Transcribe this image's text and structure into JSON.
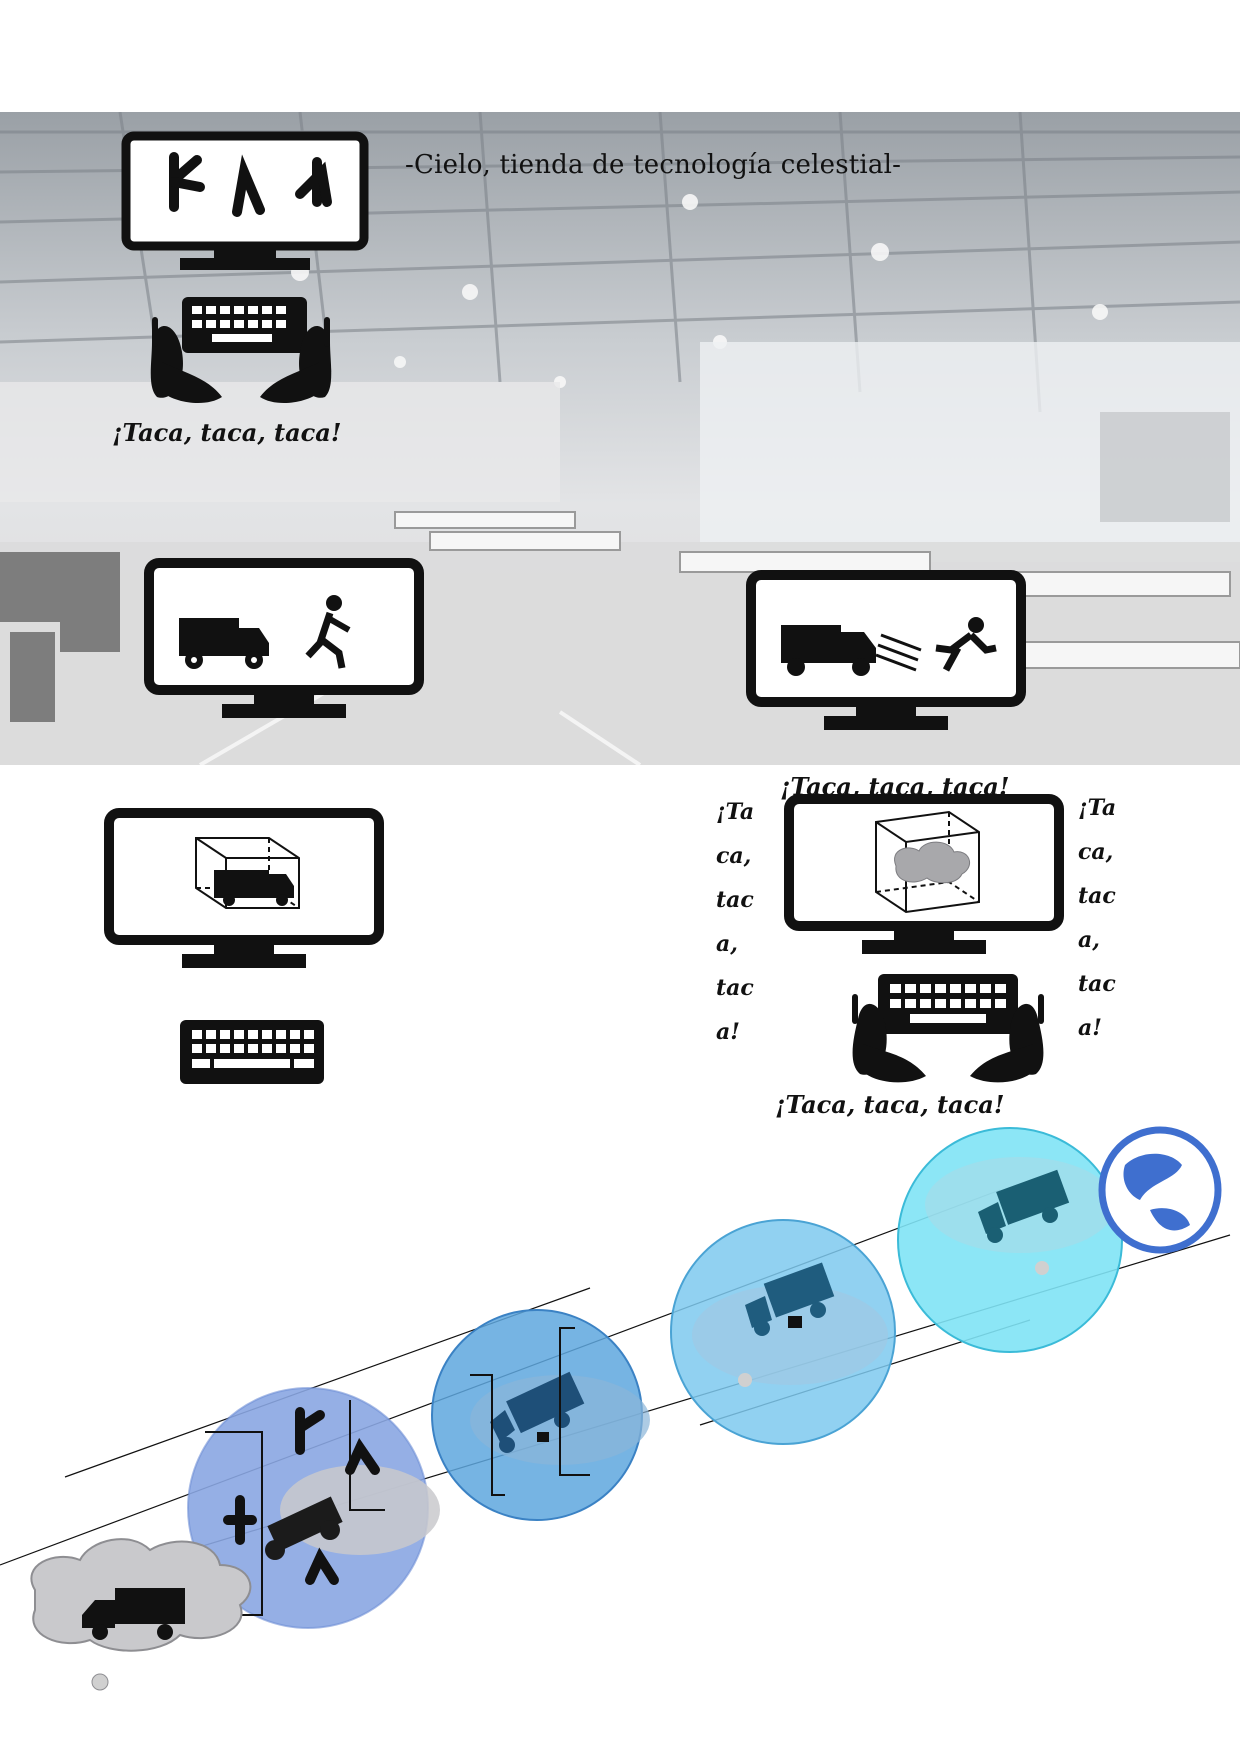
{
  "document": {
    "title": "-Cielo, tienda de tecnología celestial-"
  },
  "captions": {
    "top_left": "¡Taca, taca, taca!",
    "top_right": "¡Taca, taca, taca!",
    "bottom_right": "¡Taca, taca, taca!",
    "left_vertical": "¡Ta\nca,\ntac\na,\ntac\na!",
    "right_vertical": "¡Ta\nca,\ntac\na,\ntac\na!"
  },
  "colors": {
    "icon_black": "#111111",
    "bubble_dark": "#6f8fd6",
    "bubble_mid": "#5ea7de",
    "bubble_light": "#7ec9ee",
    "bubble_cyan": "#7fe3f5",
    "cloud_gray": "#c9c9cc",
    "globe_blue": "#3f6fcf"
  },
  "icons": [
    "monitor-with-runes-icon",
    "keyboard-with-hands-icon",
    "monitor-truck-and-runner-icon",
    "monitor-truck-chasing-runner-icon",
    "monitor-truck-in-box-icon",
    "keyboard-icon",
    "monitor-cloud-in-box-icon",
    "truck-cloud-icon",
    "globe-icon"
  ]
}
